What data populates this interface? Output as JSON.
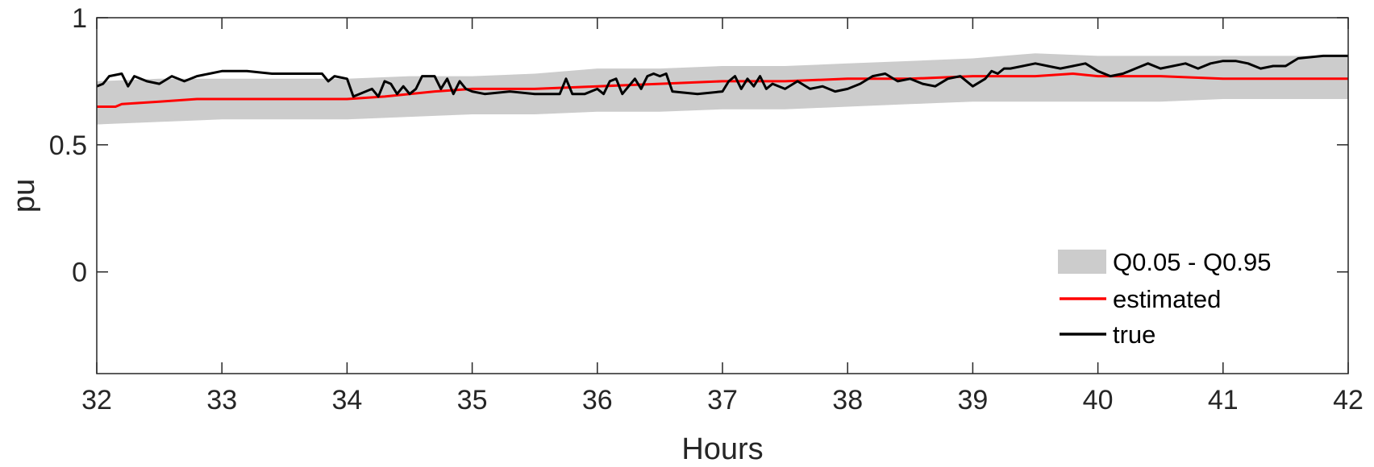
{
  "chart_data": {
    "type": "line",
    "xlabel": "Hours",
    "ylabel": "pu",
    "xlim": [
      32,
      42
    ],
    "ylim": [
      -0.4,
      1
    ],
    "xticks": [
      32,
      33,
      34,
      35,
      36,
      37,
      38,
      39,
      40,
      41,
      42
    ],
    "yticks": [
      0,
      0.5,
      1
    ],
    "ytick_labels": [
      "0",
      "0.5",
      "1"
    ],
    "grid": false,
    "legend_position": "bottom-right",
    "band": {
      "name": "Q0.05 - Q0.95",
      "color": "#cccccc",
      "x": [
        32,
        32.5,
        33,
        33.5,
        34,
        34.5,
        35,
        35.5,
        36,
        36.5,
        37,
        37.5,
        38,
        38.5,
        39,
        39.5,
        40,
        40.5,
        41,
        41.5,
        42
      ],
      "lower": [
        0.58,
        0.59,
        0.6,
        0.6,
        0.6,
        0.61,
        0.62,
        0.62,
        0.63,
        0.63,
        0.64,
        0.64,
        0.65,
        0.66,
        0.67,
        0.67,
        0.67,
        0.67,
        0.68,
        0.68,
        0.68
      ],
      "upper": [
        0.75,
        0.76,
        0.76,
        0.76,
        0.76,
        0.77,
        0.77,
        0.78,
        0.8,
        0.8,
        0.81,
        0.81,
        0.82,
        0.83,
        0.84,
        0.86,
        0.85,
        0.85,
        0.85,
        0.85,
        0.85
      ]
    },
    "series": [
      {
        "name": "estimated",
        "color": "#ff0000",
        "x": [
          32,
          32.15,
          32.2,
          32.5,
          32.8,
          33,
          33.5,
          34,
          34.3,
          34.5,
          34.7,
          35,
          35.5,
          36,
          36.5,
          37,
          37.5,
          38,
          38.5,
          39,
          39.5,
          39.8,
          40,
          40.5,
          41,
          41.5,
          42
        ],
        "values": [
          0.65,
          0.65,
          0.66,
          0.67,
          0.68,
          0.68,
          0.68,
          0.68,
          0.69,
          0.7,
          0.71,
          0.72,
          0.72,
          0.73,
          0.74,
          0.75,
          0.75,
          0.76,
          0.76,
          0.77,
          0.77,
          0.78,
          0.77,
          0.77,
          0.76,
          0.76,
          0.76
        ]
      },
      {
        "name": "true",
        "color": "#000000",
        "x": [
          32,
          32.05,
          32.1,
          32.2,
          32.25,
          32.3,
          32.4,
          32.5,
          32.6,
          32.7,
          32.8,
          32.9,
          33.0,
          33.2,
          33.4,
          33.6,
          33.8,
          33.85,
          33.9,
          34.0,
          34.05,
          34.1,
          34.2,
          34.25,
          34.3,
          34.35,
          34.4,
          34.45,
          34.5,
          34.55,
          34.6,
          34.7,
          34.75,
          34.8,
          34.85,
          34.9,
          34.95,
          35.0,
          35.1,
          35.3,
          35.5,
          35.7,
          35.75,
          35.8,
          35.9,
          36.0,
          36.05,
          36.1,
          36.15,
          36.2,
          36.25,
          36.3,
          36.35,
          36.4,
          36.45,
          36.5,
          36.55,
          36.6,
          36.8,
          37.0,
          37.05,
          37.1,
          37.15,
          37.2,
          37.25,
          37.3,
          37.35,
          37.4,
          37.5,
          37.6,
          37.7,
          37.8,
          37.9,
          38.0,
          38.1,
          38.2,
          38.3,
          38.4,
          38.5,
          38.6,
          38.7,
          38.8,
          38.9,
          39.0,
          39.1,
          39.15,
          39.2,
          39.25,
          39.3,
          39.4,
          39.5,
          39.6,
          39.7,
          39.8,
          39.9,
          40.0,
          40.1,
          40.2,
          40.3,
          40.4,
          40.5,
          40.6,
          40.7,
          40.8,
          40.9,
          41.0,
          41.1,
          41.2,
          41.3,
          41.4,
          41.5,
          41.6,
          41.8,
          42.0
        ],
        "values": [
          0.73,
          0.74,
          0.77,
          0.78,
          0.73,
          0.77,
          0.75,
          0.74,
          0.77,
          0.75,
          0.77,
          0.78,
          0.79,
          0.79,
          0.78,
          0.78,
          0.78,
          0.75,
          0.77,
          0.76,
          0.69,
          0.7,
          0.72,
          0.69,
          0.75,
          0.74,
          0.7,
          0.73,
          0.7,
          0.72,
          0.77,
          0.77,
          0.72,
          0.76,
          0.7,
          0.75,
          0.72,
          0.71,
          0.7,
          0.71,
          0.7,
          0.7,
          0.76,
          0.7,
          0.7,
          0.72,
          0.7,
          0.75,
          0.76,
          0.7,
          0.73,
          0.76,
          0.72,
          0.77,
          0.78,
          0.77,
          0.78,
          0.71,
          0.7,
          0.71,
          0.75,
          0.77,
          0.72,
          0.76,
          0.73,
          0.77,
          0.72,
          0.74,
          0.72,
          0.75,
          0.72,
          0.73,
          0.71,
          0.72,
          0.74,
          0.77,
          0.78,
          0.75,
          0.76,
          0.74,
          0.73,
          0.76,
          0.77,
          0.73,
          0.76,
          0.79,
          0.78,
          0.8,
          0.8,
          0.81,
          0.82,
          0.81,
          0.8,
          0.81,
          0.82,
          0.79,
          0.77,
          0.78,
          0.8,
          0.82,
          0.8,
          0.81,
          0.82,
          0.8,
          0.82,
          0.83,
          0.83,
          0.82,
          0.8,
          0.81,
          0.81,
          0.84,
          0.85,
          0.85
        ]
      }
    ]
  }
}
